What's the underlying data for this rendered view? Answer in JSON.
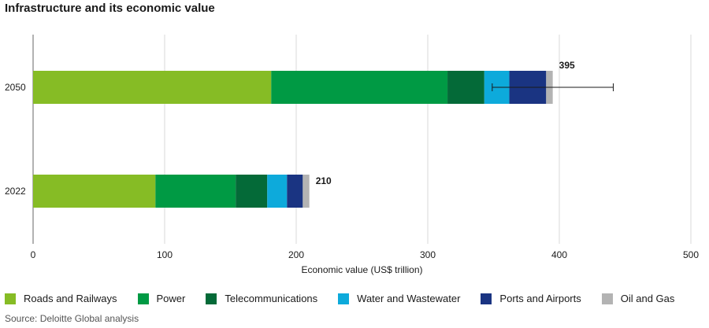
{
  "chart_data": {
    "type": "bar",
    "orientation": "horizontal",
    "stacked": true,
    "title": "Infrastructure and its economic value",
    "xlabel": "Economic value (US$ trillion)",
    "ylabel": "",
    "xlim": [
      0,
      500
    ],
    "xticks": [
      0,
      100,
      200,
      300,
      400,
      500
    ],
    "grid": true,
    "categories": [
      "2050",
      "2022"
    ],
    "series": [
      {
        "name": "Roads and Railways",
        "color": "#86bc25",
        "values": [
          181,
          93
        ]
      },
      {
        "name": "Power",
        "color": "#009a44",
        "values": [
          134,
          61
        ]
      },
      {
        "name": "Telecommunications",
        "color": "#046a38",
        "values": [
          28,
          24
        ]
      },
      {
        "name": "Water and Wastewater",
        "color": "#0daadb",
        "values": [
          19,
          15
        ]
      },
      {
        "name": "Ports and Airports",
        "color": "#1a3482",
        "values": [
          28,
          12
        ]
      },
      {
        "name": "Oil and Gas",
        "color": "#b3b3b3",
        "values": [
          5,
          5
        ]
      }
    ],
    "totals": [
      395,
      210
    ],
    "error_bar": {
      "category": "2050",
      "low": 349,
      "high": 441
    }
  },
  "source": "Source: Deloitte Global analysis"
}
